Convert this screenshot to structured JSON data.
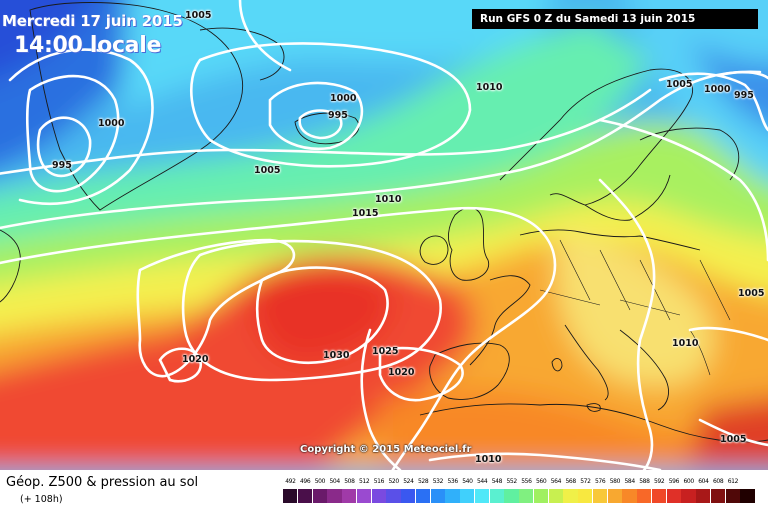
{
  "map": {
    "date_title": "Mercredi 17 juin 2015",
    "time_title": "14:00 locale",
    "run_banner": "Run GFS 0 Z du Samedi 13 juin 2015",
    "copyright": "Copyright © 2015 Meteociel.fr",
    "pressure_labels": [
      {
        "text": "1005"
      },
      {
        "text": "1000"
      },
      {
        "text": "995"
      },
      {
        "text": "1000"
      },
      {
        "text": "995"
      },
      {
        "text": "1005"
      },
      {
        "text": "1010"
      },
      {
        "text": "1010"
      },
      {
        "text": "1015"
      },
      {
        "text": "1005"
      },
      {
        "text": "1000"
      },
      {
        "text": "995"
      },
      {
        "text": "1005"
      },
      {
        "text": "1010"
      },
      {
        "text": "1020"
      },
      {
        "text": "1030"
      },
      {
        "text": "1025"
      },
      {
        "text": "1020"
      },
      {
        "text": "1010"
      },
      {
        "text": "1005"
      }
    ]
  },
  "legend": {
    "title": "Géop. Z500 & pression au sol",
    "subtitle": "(+ 108h)",
    "scale": [
      {
        "value": "492",
        "color": "#2a0a2a"
      },
      {
        "value": "496",
        "color": "#4a0f4a"
      },
      {
        "value": "500",
        "color": "#6a1a6a"
      },
      {
        "value": "504",
        "color": "#8a2a8a"
      },
      {
        "value": "508",
        "color": "#a03aa8"
      },
      {
        "value": "512",
        "color": "#9a4ad0"
      },
      {
        "value": "516",
        "color": "#7a4ae0"
      },
      {
        "value": "520",
        "color": "#5a50e8"
      },
      {
        "value": "524",
        "color": "#3a58f0"
      },
      {
        "value": "528",
        "color": "#2a70f4"
      },
      {
        "value": "532",
        "color": "#2a90f8"
      },
      {
        "value": "536",
        "color": "#30b0fa"
      },
      {
        "value": "540",
        "color": "#40d0fc"
      },
      {
        "value": "544",
        "color": "#50e8f8"
      },
      {
        "value": "548",
        "color": "#5af0d0"
      },
      {
        "value": "552",
        "color": "#60f0a0"
      },
      {
        "value": "556",
        "color": "#80f080"
      },
      {
        "value": "560",
        "color": "#a0f060"
      },
      {
        "value": "564",
        "color": "#c8f050"
      },
      {
        "value": "568",
        "color": "#f0f048"
      },
      {
        "value": "572",
        "color": "#f8e840"
      },
      {
        "value": "576",
        "color": "#f8c838"
      },
      {
        "value": "580",
        "color": "#f8a830"
      },
      {
        "value": "584",
        "color": "#f88828"
      },
      {
        "value": "588",
        "color": "#f86828"
      },
      {
        "value": "592",
        "color": "#f04828"
      },
      {
        "value": "596",
        "color": "#e03028"
      },
      {
        "value": "600",
        "color": "#c82020"
      },
      {
        "value": "604",
        "color": "#a81818"
      },
      {
        "value": "608",
        "color": "#801010"
      },
      {
        "value": "612",
        "color": "#500808"
      },
      {
        "value": "",
        "color": "#200000"
      }
    ]
  }
}
